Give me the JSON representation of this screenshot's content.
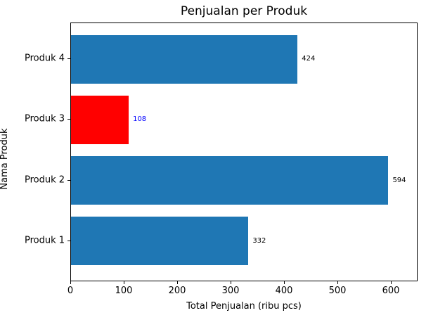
{
  "chart_data": {
    "type": "bar",
    "orientation": "horizontal",
    "title": "Penjualan per Produk",
    "xlabel": "Total Penjualan (ribu pcs)",
    "ylabel": "Nama Produk",
    "categories": [
      "Produk 1",
      "Produk 2",
      "Produk 3",
      "Produk 4"
    ],
    "values": [
      332,
      594,
      108,
      424
    ],
    "value_labels": [
      "332",
      "594",
      "108",
      "424"
    ],
    "bar_colors": [
      "#1f77b4",
      "#1f77b4",
      "#ff0000",
      "#1f77b4"
    ],
    "value_label_colors": [
      "#000000",
      "#000000",
      "#0000ff",
      "#000000"
    ],
    "xticks": [
      0,
      100,
      200,
      300,
      400,
      500,
      600
    ],
    "xtick_labels": [
      "0",
      "100",
      "200",
      "300",
      "400",
      "500",
      "600"
    ],
    "xlim": [
      0,
      650
    ],
    "grid": false,
    "legend_position": "none"
  },
  "colors": {
    "bar_default": "#1f77b4",
    "bar_highlight": "#ff0000",
    "highlight_value_label": "#0000ff",
    "text": "#000000",
    "background": "#ffffff",
    "spine": "#000000"
  }
}
